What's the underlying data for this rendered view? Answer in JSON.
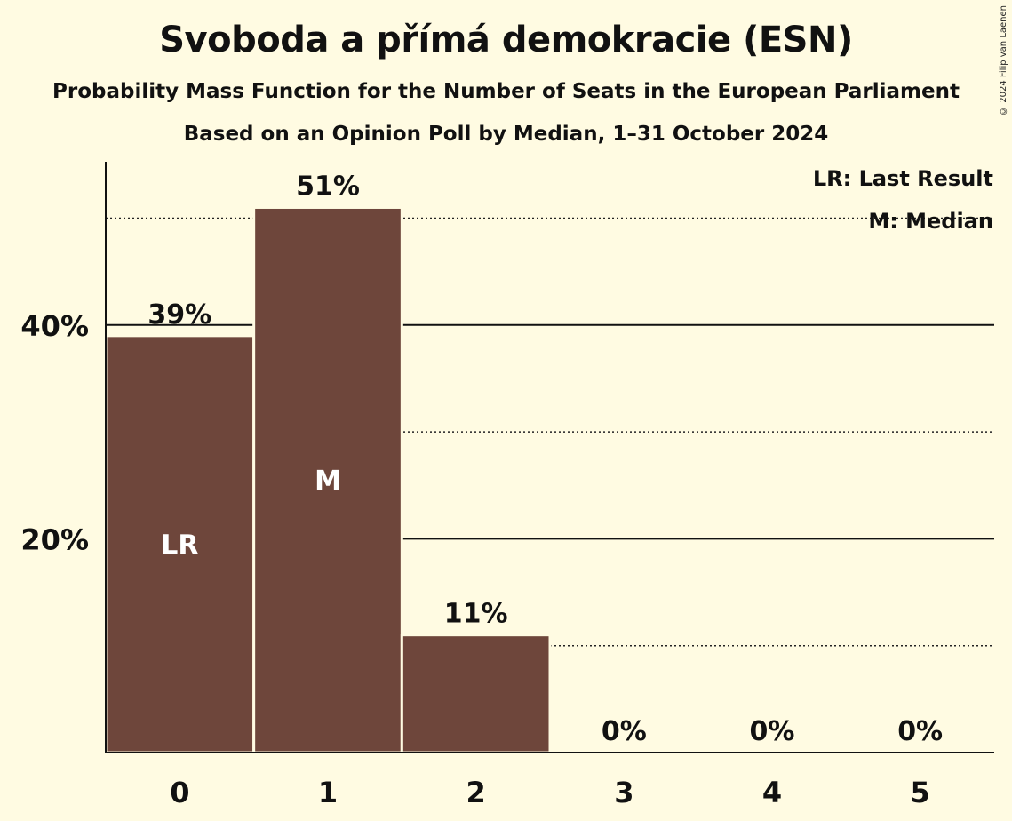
{
  "title": "Svoboda a přímá demokracie (ESN)",
  "subtitle1": "Probability Mass Function for the Number of Seats in the European Parliament",
  "subtitle2": "Based on an Opinion Poll by Median, 1–31 October 2024",
  "copyright": "© 2024 Filip van Laenen",
  "legend": [
    "LR: Last Result",
    "M: Median"
  ],
  "colors": {
    "background": "#fffbe2",
    "bar": "#6e463b",
    "text": "#111111"
  },
  "chart_data": {
    "type": "bar",
    "categories": [
      "0",
      "1",
      "2",
      "3",
      "4",
      "5"
    ],
    "values": [
      39,
      51,
      11,
      0,
      0,
      0
    ],
    "value_labels": [
      "39%",
      "51%",
      "11%",
      "0%",
      "0%",
      "0%"
    ],
    "bar_markers": [
      "LR",
      "M",
      "",
      "",
      "",
      ""
    ],
    "ylim": [
      0,
      55
    ],
    "yticks": [
      20,
      40
    ],
    "ytick_labels": [
      "20%",
      "40%"
    ],
    "solid_gridlines": [
      20,
      40
    ],
    "dotted_gridlines": [
      10,
      30,
      50
    ],
    "legend_position": "top-right"
  }
}
